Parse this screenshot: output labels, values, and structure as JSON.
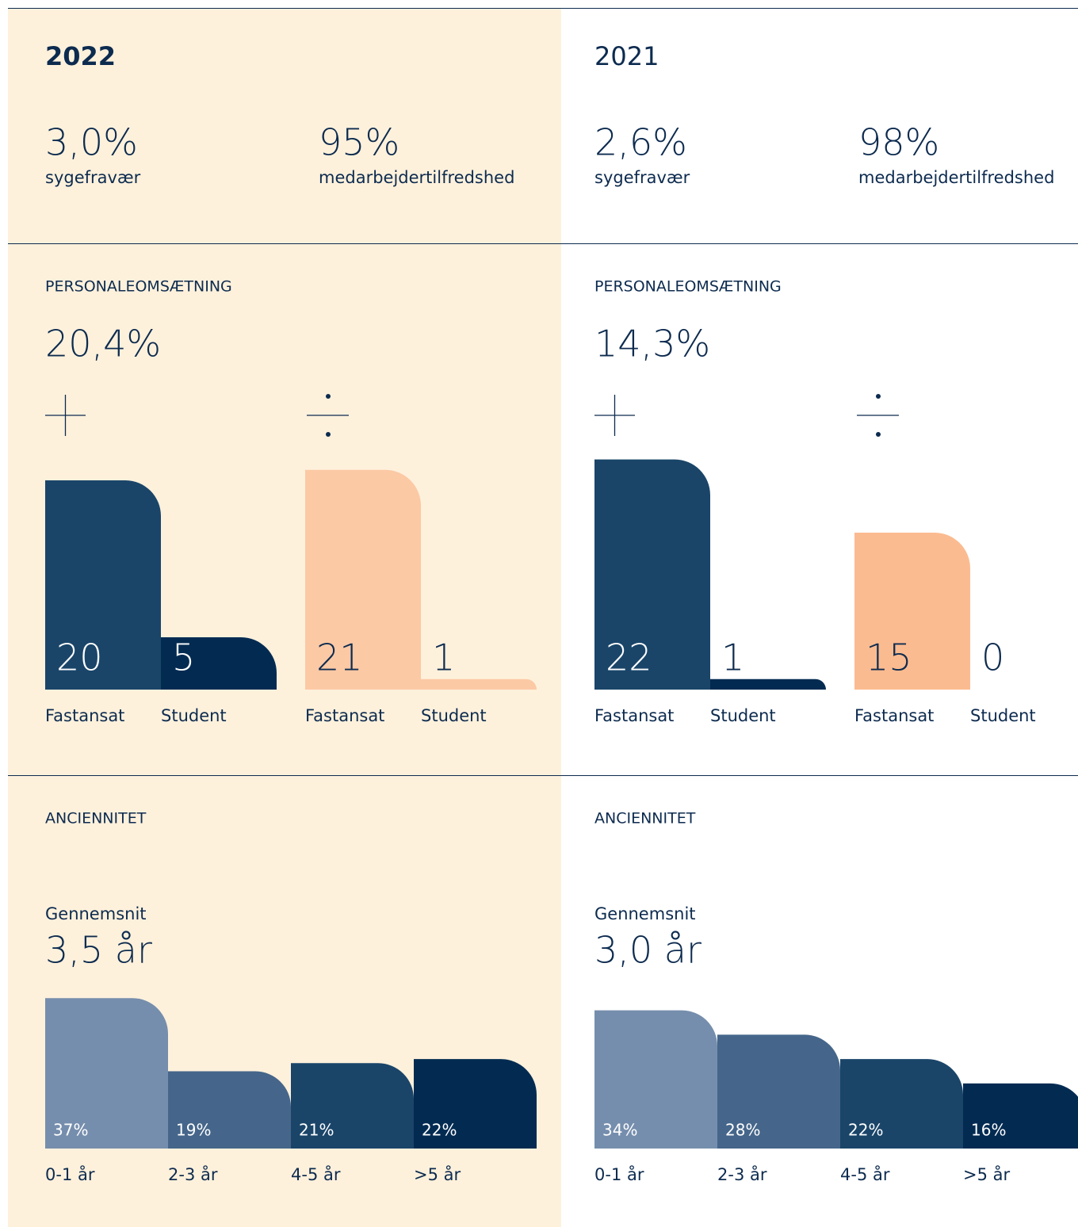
{
  "columns": [
    {
      "year": "2022",
      "stats": [
        {
          "value": "3,0%",
          "label": "sygefravær"
        },
        {
          "value": "95%",
          "label": "medarbejdertilfredshed"
        }
      ],
      "turnover": {
        "heading": "PERSONALEOMSÆTNING",
        "value": "20,4%"
      },
      "seniority": {
        "heading": "ANCIENNITET",
        "subheading": "Gennemsnit",
        "value": "3,5 år"
      }
    },
    {
      "year": "2021",
      "stats": [
        {
          "value": "2,6%",
          "label": "sygefravær"
        },
        {
          "value": "98%",
          "label": "medarbejdertilfredshed"
        }
      ],
      "turnover": {
        "heading": "PERSONALEOMSÆTNING",
        "value": "14,3%"
      },
      "seniority": {
        "heading": "ANCIENNITET",
        "subheading": "Gennemsnit",
        "value": "3,0 år"
      }
    }
  ],
  "chart_data": [
    {
      "type": "bar",
      "categories": [
        "Fastansat",
        "Student"
      ],
      "values": [
        20,
        5
      ],
      "colors": [
        "#1a4569",
        "#032b52"
      ]
    },
    {
      "type": "bar",
      "categories": [
        "Fastansat",
        "Student"
      ],
      "values": [
        21,
        1
      ],
      "colors": [
        "#fcc9a5",
        "#fcc9a5"
      ]
    },
    {
      "type": "bar",
      "categories": [
        "Fastansat",
        "Student"
      ],
      "values": [
        22,
        1
      ],
      "colors": [
        "#1a4569",
        "#032b52"
      ]
    },
    {
      "type": "bar",
      "categories": [
        "Fastansat",
        "Student"
      ],
      "values": [
        15,
        0
      ],
      "colors": [
        "#fbbb90",
        "#fbbb90"
      ]
    },
    {
      "type": "bar",
      "categories": [
        "0-1 år",
        "2-3 år",
        "4-5 år",
        ">5 år"
      ],
      "values": [
        37,
        19,
        21,
        22
      ],
      "value_labels": [
        "37%",
        "19%",
        "21%",
        "22%"
      ],
      "colors": [
        "#768ead",
        "#45668a",
        "#1a4569",
        "#032b52"
      ]
    },
    {
      "type": "bar",
      "categories": [
        "0-1 år",
        "2-3 år",
        "4-5 år",
        ">5 år"
      ],
      "values": [
        34,
        28,
        22,
        16
      ],
      "value_labels": [
        "34%",
        "28%",
        "22%",
        "16%"
      ],
      "colors": [
        "#768ead",
        "#45668a",
        "#1a4569",
        "#032b52"
      ]
    }
  ]
}
